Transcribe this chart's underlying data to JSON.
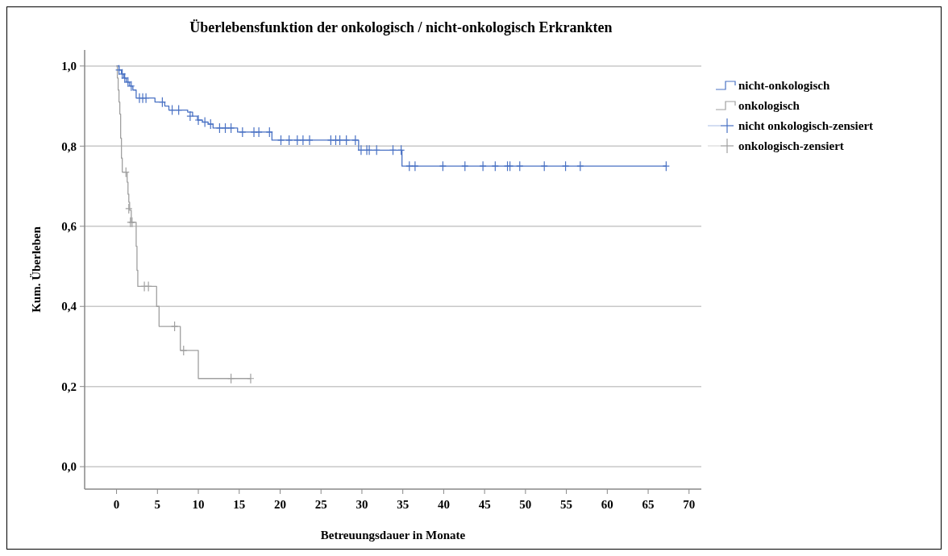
{
  "chart_data": {
    "type": "step",
    "title": "Überlebensfunktion der onkologisch / nicht-onkologisch Erkrankten",
    "xlabel": "Betreuungsdauer in Monate",
    "ylabel": "Kum. Überleben",
    "xlim": [
      -3.9,
      71.5
    ],
    "ylim": [
      -0.056,
      1.04
    ],
    "xticks": [
      0,
      5,
      10,
      15,
      20,
      25,
      30,
      35,
      40,
      45,
      50,
      55,
      60,
      65,
      70
    ],
    "yticks": [
      {
        "value": 0,
        "label": "0,0"
      },
      {
        "value": 0.2,
        "label": "0,2"
      },
      {
        "value": 0.4,
        "label": "0,4"
      },
      {
        "value": 0.6,
        "label": "0,6"
      },
      {
        "value": 0.8,
        "label": "0,8"
      },
      {
        "value": 1,
        "label": "1,0"
      }
    ],
    "grid": "y",
    "legend": "right",
    "series": [
      {
        "name": "nicht-onkologisch",
        "color": "#4a72c4",
        "x": [
          0,
          0.3,
          0.6,
          0.9,
          1.2,
          1.6,
          2.0,
          2.4,
          4.7,
          5.9,
          6.4,
          8.7,
          9.3,
          9.9,
          10.5,
          11.2,
          11.8,
          14.8,
          19.0,
          29.6,
          34.9,
          67.2
        ],
        "values": [
          1.0,
          0.99,
          0.98,
          0.97,
          0.96,
          0.95,
          0.94,
          0.92,
          0.91,
          0.9,
          0.89,
          0.885,
          0.875,
          0.865,
          0.86,
          0.855,
          0.845,
          0.835,
          0.815,
          0.79,
          0.75,
          0.75
        ]
      },
      {
        "name": "onkologisch",
        "color": "#a0a0a0",
        "x": [
          0,
          0.1,
          0.2,
          0.3,
          0.4,
          0.5,
          0.6,
          0.7,
          1.3,
          1.4,
          1.5,
          1.6,
          1.8,
          2.4,
          2.5,
          2.6,
          4.9,
          5.2,
          7.8,
          10.0,
          16.4
        ],
        "values": [
          1,
          0.97,
          0.94,
          0.91,
          0.88,
          0.82,
          0.77,
          0.735,
          0.71,
          0.68,
          0.66,
          0.64,
          0.61,
          0.55,
          0.49,
          0.45,
          0.4,
          0.35,
          0.29,
          0.22,
          0.22
        ]
      },
      {
        "name": "nicht onkologisch-zensiert",
        "type": "scatter",
        "marker": "cross",
        "color": "#4a72c4",
        "x": [
          0.3,
          0.7,
          1.0,
          1.4,
          1.8,
          2.8,
          3.2,
          3.6,
          5.6,
          6.8,
          7.6,
          9.0,
          10.0,
          10.8,
          11.5,
          12.6,
          13.3,
          14.0,
          15.4,
          16.8,
          17.4,
          18.7,
          20.1,
          21.1,
          22.1,
          22.8,
          23.6,
          26.2,
          26.8,
          27.3,
          28.1,
          29.2,
          29.9,
          30.6,
          30.9,
          31.8,
          33.8,
          34.8,
          35.8,
          36.5,
          39.9,
          42.6,
          44.8,
          46.3,
          47.8,
          48.1,
          49.3,
          52.3,
          54.9,
          56.7,
          67.2
        ],
        "values": [
          0.99,
          0.98,
          0.97,
          0.96,
          0.95,
          0.92,
          0.92,
          0.92,
          0.91,
          0.89,
          0.89,
          0.875,
          0.865,
          0.86,
          0.855,
          0.845,
          0.845,
          0.845,
          0.835,
          0.835,
          0.835,
          0.835,
          0.815,
          0.815,
          0.815,
          0.815,
          0.815,
          0.815,
          0.815,
          0.815,
          0.815,
          0.815,
          0.79,
          0.79,
          0.79,
          0.79,
          0.79,
          0.79,
          0.75,
          0.75,
          0.75,
          0.75,
          0.75,
          0.75,
          0.75,
          0.75,
          0.75,
          0.75,
          0.75,
          0.75,
          0.75
        ]
      },
      {
        "name": "onkologisch-zensiert",
        "type": "scatter",
        "marker": "cross",
        "color": "#a0a0a0",
        "x": [
          1.15,
          1.5,
          1.7,
          1.9,
          3.4,
          3.9,
          7.1,
          8.2,
          14.0,
          16.4
        ],
        "values": [
          0.735,
          0.644,
          0.61,
          0.61,
          0.45,
          0.45,
          0.35,
          0.29,
          0.22,
          0.22
        ]
      }
    ]
  }
}
